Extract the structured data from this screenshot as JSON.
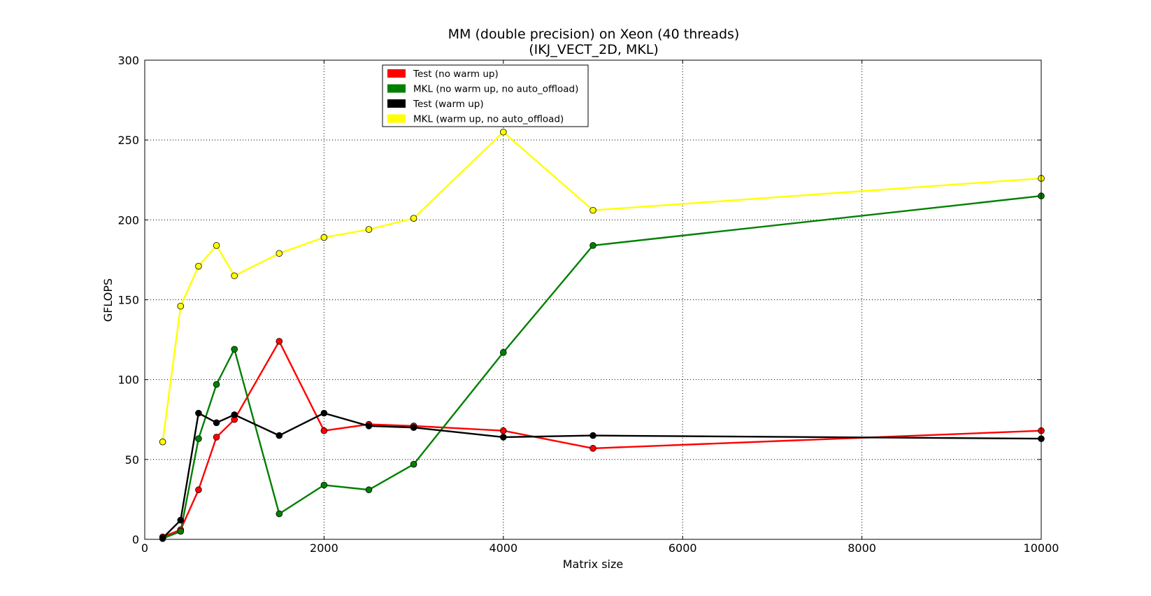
{
  "chart_data": {
    "type": "line",
    "title": "MM (double precision) on Xeon (40 threads)",
    "subtitle": "(IKJ_VECT_2D, MKL)",
    "xlabel": "Matrix size",
    "ylabel": "GFLOPS",
    "xlim": [
      0,
      10000
    ],
    "ylim": [
      0,
      300
    ],
    "xticks": [
      0,
      2000,
      4000,
      6000,
      8000,
      10000
    ],
    "yticks": [
      0,
      50,
      100,
      150,
      200,
      250,
      300
    ],
    "grid": true,
    "legend_position": "top-center",
    "series": [
      {
        "name": "Test (no warm up)",
        "color": "#ff0000",
        "x": [
          200,
          400,
          600,
          800,
          1000,
          1500,
          2000,
          2500,
          3000,
          4000,
          5000,
          10000
        ],
        "y": [
          1.5,
          6,
          31,
          64,
          75,
          124,
          68,
          72,
          71,
          68,
          57,
          68
        ]
      },
      {
        "name": "MKL (no warm up, no auto_offload)",
        "color": "#008000",
        "x": [
          200,
          400,
          600,
          800,
          1000,
          1500,
          2000,
          2500,
          3000,
          4000,
          5000,
          10000
        ],
        "y": [
          0.5,
          5,
          63,
          97,
          119,
          16,
          34,
          31,
          47,
          117,
          184,
          215
        ]
      },
      {
        "name": "Test (warm up)",
        "color": "#000000",
        "x": [
          200,
          400,
          600,
          800,
          1000,
          1500,
          2000,
          2500,
          3000,
          4000,
          5000,
          10000
        ],
        "y": [
          0.8,
          12,
          79,
          73,
          78,
          65,
          79,
          71,
          70,
          64,
          65,
          63
        ]
      },
      {
        "name": "MKL (warm up, no auto_offload)",
        "color": "#ffff00",
        "x": [
          200,
          400,
          600,
          800,
          1000,
          1500,
          2000,
          2500,
          3000,
          4000,
          5000,
          10000
        ],
        "y": [
          61,
          146,
          171,
          184,
          165,
          179,
          189,
          194,
          201,
          255,
          206,
          226
        ]
      }
    ]
  }
}
